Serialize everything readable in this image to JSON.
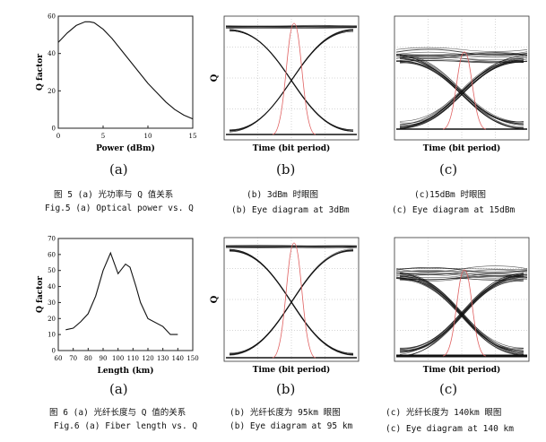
{
  "figures": [
    {
      "caption_cn": "图 5 (a) 光功率与 Q 值关系",
      "caption_en": "Fig.5 (a) Optical power vs. Q",
      "chart_data": {
        "type": "line",
        "xlabel": "Power (dBm)",
        "ylabel": "Q factor",
        "xlim": [
          0,
          15
        ],
        "ylim": [
          0,
          60
        ],
        "xticks": [
          "0",
          "5",
          "10",
          "15"
        ],
        "yticks": [
          "0",
          "20",
          "40",
          "60"
        ],
        "x": [
          0,
          1,
          2,
          3,
          3.5,
          4,
          5,
          6,
          7,
          8,
          9,
          10,
          11,
          12,
          13,
          14,
          15
        ],
        "series": [
          {
            "values": [
              46,
              51,
              55,
              57,
              57,
              56.5,
              53,
              48,
              42,
              36,
              30,
              24,
              19,
              14,
              10,
              7,
              5
            ]
          }
        ],
        "panel_label": "(a)"
      },
      "eye_b": {
        "panel_label": "(b)",
        "xlabel": "Time (bit period)",
        "ylabel": "Q",
        "caption_cn": "(b) 3dBm 时眼图",
        "caption_en": "(b) Eye diagram at 3dBm"
      },
      "eye_c": {
        "panel_label": "(c)",
        "xlabel": "Time (bit period)",
        "caption_cn": "(c)15dBm 时眼图",
        "caption_en": "(c) Eye diagram at 15dBm"
      }
    },
    {
      "caption_cn": "图 6 (a) 光纤长度与 Q 值的关系",
      "caption_en": "Fig.6 (a) Fiber length vs. Q",
      "chart_data": {
        "type": "line",
        "xlabel": "Length (km)",
        "ylabel": "Q factor",
        "xlim": [
          60,
          150
        ],
        "ylim": [
          0,
          70
        ],
        "xticks": [
          "60",
          "70",
          "80",
          "90",
          "100",
          "110",
          "120",
          "130",
          "140",
          "150"
        ],
        "yticks": [
          "0",
          "10",
          "20",
          "30",
          "40",
          "50",
          "60",
          "70"
        ],
        "x": [
          65,
          70,
          75,
          80,
          85,
          90,
          95,
          100,
          105,
          108,
          112,
          115,
          120,
          130,
          135,
          140
        ],
        "series": [
          {
            "values": [
              13,
              14,
              18,
              23,
              34,
              50,
              61,
              48,
              54,
              52,
              40,
              30,
              20,
              15,
              10,
              10
            ]
          }
        ],
        "panel_label": "(a)"
      },
      "eye_b": {
        "panel_label": "(b)",
        "xlabel": "Time (bit period)",
        "ylabel": "Q",
        "caption_cn": "(b) 光纤长度为 95km 眼图",
        "caption_en": "(b) Eye diagram at 95 km"
      },
      "eye_c": {
        "panel_label": "(c)",
        "xlabel": "Time (bit period)",
        "caption_cn": "(c) 光纤长度为 140km 眼图",
        "caption_en": "(c) Eye diagram at 140 km"
      }
    }
  ]
}
